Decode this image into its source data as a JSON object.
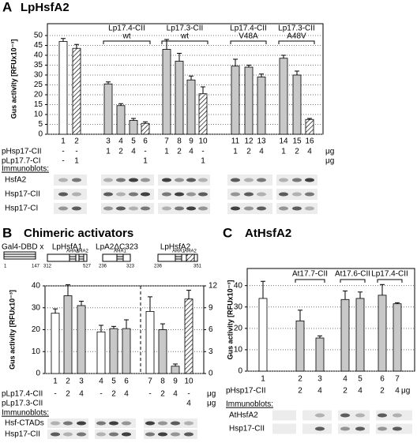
{
  "chart_data": [
    {
      "type": "bar",
      "panel": "A",
      "title": "LpHsfA2",
      "y_label": "Gus activity [RFUx10⁻³]",
      "categories": [
        "1",
        "2",
        "3",
        "4",
        "5",
        "6",
        "7",
        "8",
        "9",
        "10",
        "11",
        "12",
        "13",
        "14",
        "15",
        "16"
      ],
      "series": [
        {
          "values": [
            47,
            43.5,
            25.5,
            14.5,
            7,
            5.5,
            43,
            37,
            27.5,
            20.5,
            34.5,
            34,
            29,
            38.5,
            30,
            7.5
          ],
          "errors": [
            1.5,
            2,
            1,
            1,
            1,
            0.8,
            5,
            4,
            2,
            3.5,
            3.5,
            1,
            1.5,
            1.5,
            2,
            0.5
          ],
          "styles": [
            "white",
            "hatched",
            "gray",
            "gray",
            "gray",
            "hatched",
            "gray",
            "gray",
            "gray",
            "hatched",
            "gray",
            "gray",
            "gray",
            "gray",
            "gray",
            "hatched"
          ]
        }
      ],
      "ylim": [
        0,
        56
      ],
      "yticks": [
        0,
        5,
        10,
        15,
        20,
        25,
        30,
        35,
        40,
        45,
        50
      ],
      "grid": true,
      "groups": [
        {
          "label": "Lp17.4-CII",
          "sublabel": "wt"
        },
        {
          "label": "Lp17.3-CII",
          "sublabel": "wt"
        },
        {
          "label": "Lp17.4-CII",
          "sublabel": "V48A"
        },
        {
          "label": "Lp17.3-CII",
          "sublabel": "A48V"
        }
      ],
      "rows": [
        {
          "label": "pHsp17-CII",
          "values": [
            "-",
            "-",
            "1",
            "2",
            "4",
            "-",
            "1",
            "2",
            "4",
            "-",
            "1",
            "2",
            "4",
            "1",
            "2",
            "4"
          ],
          "unit": "μg"
        },
        {
          "label": "pLp17.7-CI",
          "values": [
            "-",
            "1",
            null,
            null,
            null,
            "1",
            null,
            null,
            null,
            "1",
            null,
            null,
            null,
            null,
            null,
            null
          ],
          "unit": "μg"
        }
      ],
      "immunoblots": {
        "title": "Immunoblots:",
        "rows": [
          "HsfA2",
          "Hsp17-CII",
          "Hsp17-CI"
        ]
      }
    },
    {
      "type": "bar",
      "panel": "B",
      "title": "Chimeric activators",
      "y_label": "Gus activity [RFUx10⁻³]",
      "categories": [
        "1",
        "2",
        "3",
        "4",
        "5",
        "6",
        "7",
        "8",
        "9",
        "10"
      ],
      "series": [
        {
          "values": [
            27.5,
            35.5,
            31,
            19,
            20.5,
            20.5,
            null,
            null,
            null,
            null
          ],
          "errors": [
            2,
            5,
            2,
            3,
            1,
            4,
            null,
            null,
            null,
            null
          ],
          "styles": [
            "white",
            "gray",
            "gray",
            "white",
            "gray",
            "gray",
            null,
            null,
            null,
            null
          ]
        },
        {
          "axis": "y2",
          "values": [
            null,
            null,
            null,
            null,
            null,
            null,
            8.5,
            6,
            1,
            10.2
          ],
          "errors": [
            null,
            null,
            null,
            null,
            null,
            null,
            2,
            0.8,
            0.3,
            1.2
          ],
          "styles": [
            null,
            null,
            null,
            null,
            null,
            null,
            "white",
            "gray",
            "gray",
            "hatched"
          ]
        }
      ],
      "ylim": [
        0,
        40
      ],
      "yticks": [
        0,
        10,
        20,
        30,
        40
      ],
      "y2lim": [
        0,
        12
      ],
      "y2ticks": [
        0,
        3,
        6,
        9,
        12
      ],
      "grid": true,
      "constructs": {
        "prefix": "Gal4-DBD x",
        "dbd": [
          1,
          147
        ],
        "items": [
          {
            "name": "LpHsfA1",
            "domains": [
              "AHA1",
              "AHA2"
            ],
            "range": [
              312,
              527
            ]
          },
          {
            "name": "LpA2ΔC323",
            "domains": [
              "AHA1"
            ],
            "range": [
              236,
              323
            ]
          },
          {
            "name": "LpHsfA2",
            "domains": [
              "AHA1",
              "AHA2"
            ],
            "range": [
              236,
              351
            ]
          }
        ]
      },
      "rows": [
        {
          "label": "pLp17.4-CII",
          "values": [
            "-",
            "2",
            "4",
            "-",
            "2",
            "4",
            "-",
            "2",
            "4",
            "-"
          ],
          "unit": "μg"
        },
        {
          "label": "pLp17.3-CII",
          "values": [
            null,
            null,
            null,
            null,
            null,
            null,
            null,
            null,
            null,
            "4"
          ],
          "unit": "μg"
        }
      ],
      "immunoblots": {
        "title": "Immunoblots:",
        "rows": [
          "Hsf-CTADs",
          "Hsp17-CII"
        ]
      }
    },
    {
      "type": "bar",
      "panel": "C",
      "title": "AtHsfA2",
      "y_label": "Gus activity [RFUx10⁻³]",
      "categories": [
        "1",
        "2",
        "3",
        "4",
        "5",
        "6",
        "7"
      ],
      "series": [
        {
          "values": [
            34,
            23.5,
            15.5,
            33.5,
            34,
            35.5,
            31.5
          ],
          "errors": [
            8,
            5,
            1,
            4,
            3,
            5,
            0.5
          ],
          "styles": [
            "white",
            "gray",
            "gray",
            "gray",
            "gray",
            "gray",
            "gray"
          ]
        }
      ],
      "ylim": [
        0,
        48
      ],
      "yticks": [
        0,
        10,
        20,
        30,
        40
      ],
      "grid": true,
      "groups": [
        {
          "label": "At17.7-CII"
        },
        {
          "label": "At17.6-CII"
        },
        {
          "label": "Lp17.4-CII"
        }
      ],
      "rows": [
        {
          "label": "pHsp17-CII",
          "values": [
            null,
            "2",
            "4",
            "2",
            "4",
            "2",
            "4"
          ],
          "unit": "μg"
        }
      ],
      "immunoblots": {
        "title": "Immunoblots:",
        "rows": [
          "AtHsfA2",
          "Hsp17-CII"
        ]
      }
    }
  ]
}
